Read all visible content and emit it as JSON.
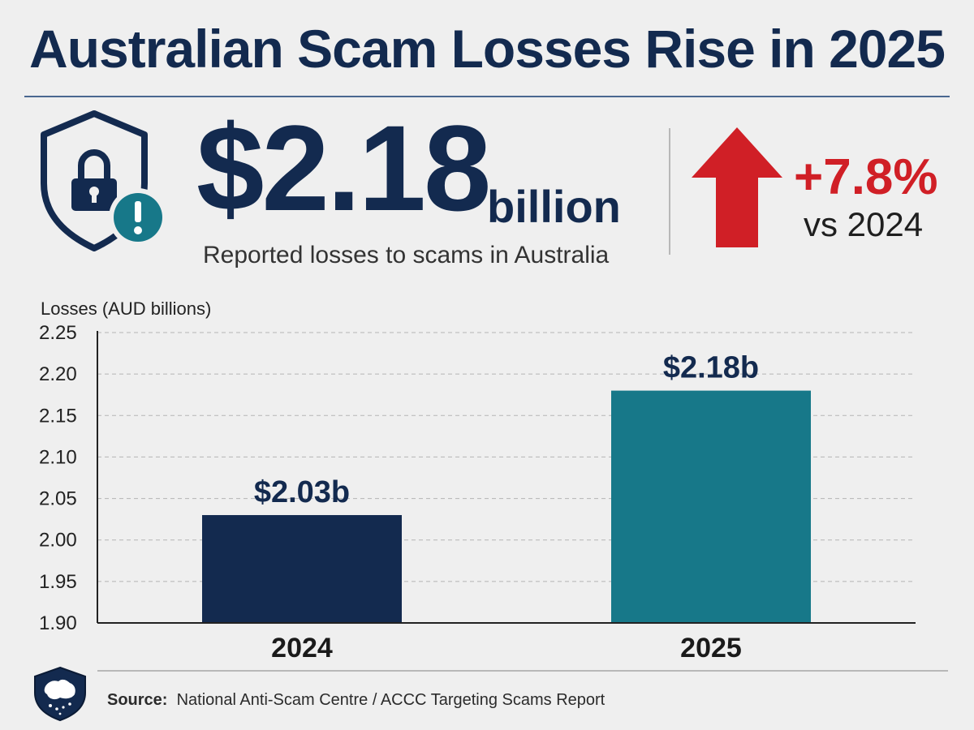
{
  "header": {
    "title": "Australian Scam Losses Rise in 2025"
  },
  "headline": {
    "amount": "$2.18",
    "unit": "billion",
    "subtitle": "Reported losses to scams in Australia",
    "change": "+7.8%",
    "change_vs": "vs 2024",
    "icons": [
      "shield-lock-icon",
      "alert-icon",
      "up-arrow-icon"
    ]
  },
  "colors": {
    "navy": "#132a4f",
    "teal": "#177889",
    "red": "#d01f26"
  },
  "chart_data": {
    "type": "bar",
    "ylabel": "Losses (AUD billions)",
    "categories": [
      "2024",
      "2025"
    ],
    "values": [
      2.03,
      2.18
    ],
    "data_labels": [
      "$2.03b",
      "$2.18b"
    ],
    "bar_colors": [
      "#132a4f",
      "#177889"
    ],
    "ylim": [
      1.9,
      2.25
    ],
    "yticks": [
      "2.25",
      "2.20",
      "2.15",
      "2.10",
      "2.05",
      "2.00",
      "1.95",
      "1.90"
    ],
    "grid": true
  },
  "footer": {
    "source_label": "Source:",
    "source_text": "National Anti-Scam Centre  /  ACCC Targeting Scams Report",
    "badge_icon": "australia-shield-icon"
  }
}
